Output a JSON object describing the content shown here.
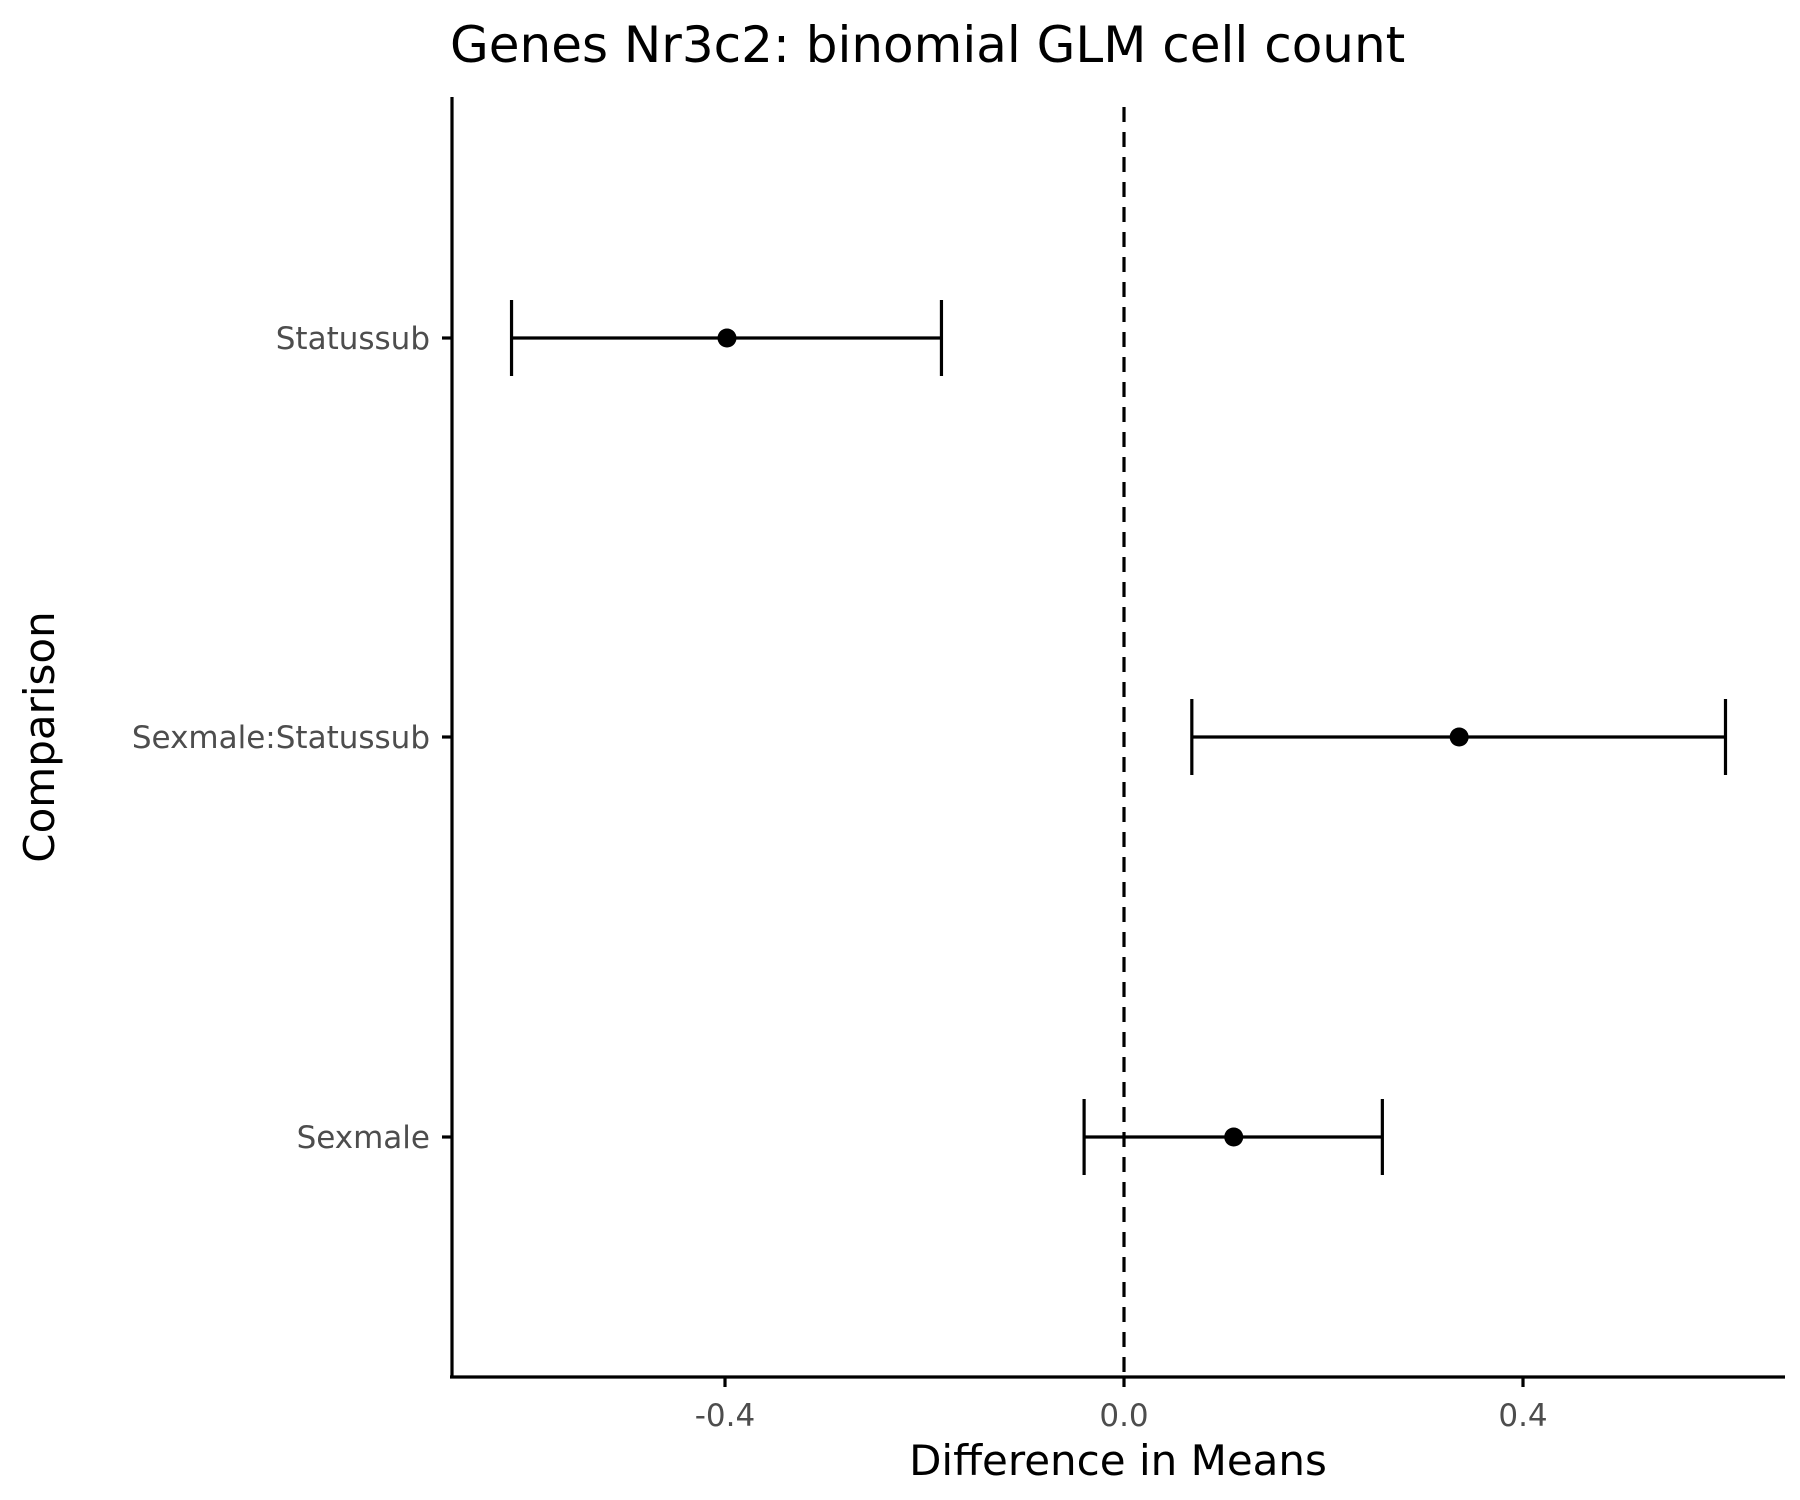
{
  "chart_data": {
    "type": "scatter",
    "title": "Genes Nr3c2: binomial GLM cell count",
    "xlabel": "Difference in Means",
    "ylabel": "Comparison",
    "xlim": [
      -0.675,
      0.66
    ],
    "xticks": [
      {
        "value": -0.4,
        "label": "-0.4"
      },
      {
        "value": 0.0,
        "label": "0.0"
      },
      {
        "value": 0.4,
        "label": "0.4"
      }
    ],
    "categories": [
      "Statussub",
      "Sexmale:Statussub",
      "Sexmale"
    ],
    "reference_line": {
      "x": 0,
      "style": "dashed"
    },
    "points": [
      {
        "category": "Statussub",
        "estimate": -0.398,
        "lower": -0.614,
        "upper": -0.183
      },
      {
        "category": "Sexmale:Statussub",
        "estimate": 0.336,
        "lower": 0.068,
        "upper": 0.603
      },
      {
        "category": "Sexmale",
        "estimate": 0.11,
        "lower": -0.04,
        "upper": 0.259
      }
    ],
    "grid": false,
    "legend": "none"
  }
}
